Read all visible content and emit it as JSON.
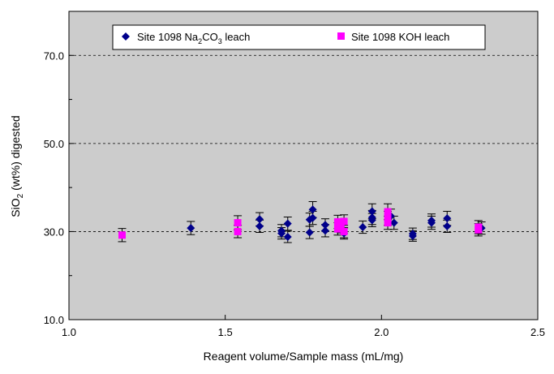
{
  "chart_data": {
    "type": "scatter",
    "xlabel": "Reagent volume/Sample mass (mL/mg)",
    "ylabel_parts": [
      "SiO",
      "2",
      " (wt%) digested"
    ],
    "xlim": [
      1.0,
      2.5
    ],
    "ylim": [
      10.0,
      80.0
    ],
    "x_ticks": [
      1.0,
      1.5,
      2.0,
      2.5
    ],
    "x_tick_labels": [
      "1.0",
      "1.5",
      "2.0",
      "2.5"
    ],
    "y_ticks": [
      10.0,
      30.0,
      50.0,
      70.0
    ],
    "y_tick_labels": [
      "10.0",
      "30.0",
      "50.0",
      "70.0"
    ],
    "grid": "dashed horizontal at y ticks",
    "plot_background": "#cccccc",
    "legend_position": "top",
    "series": [
      {
        "name_parts": [
          "Site 1098 Na",
          "2",
          "CO",
          "3",
          " leach"
        ],
        "marker": "diamond",
        "color": "#00008b",
        "points": [
          {
            "x": 1.39,
            "y": 30.8,
            "err": 1.5
          },
          {
            "x": 1.61,
            "y": 32.8,
            "err": 1.5
          },
          {
            "x": 1.61,
            "y": 31.2,
            "err": 1.4
          },
          {
            "x": 1.68,
            "y": 29.6,
            "err": 1.3
          },
          {
            "x": 1.68,
            "y": 30.2,
            "err": 1.4
          },
          {
            "x": 1.7,
            "y": 31.8,
            "err": 1.5
          },
          {
            "x": 1.7,
            "y": 28.8,
            "err": 1.3
          },
          {
            "x": 1.77,
            "y": 32.7,
            "err": 1.5
          },
          {
            "x": 1.77,
            "y": 29.8,
            "err": 1.4
          },
          {
            "x": 1.78,
            "y": 35.0,
            "err": 1.8
          },
          {
            "x": 1.78,
            "y": 33.1,
            "err": 1.5
          },
          {
            "x": 1.82,
            "y": 31.5,
            "err": 1.4
          },
          {
            "x": 1.82,
            "y": 30.2,
            "err": 1.4
          },
          {
            "x": 1.87,
            "y": 31.4,
            "err": 1.5
          },
          {
            "x": 1.88,
            "y": 29.6,
            "err": 1.3
          },
          {
            "x": 1.94,
            "y": 31.0,
            "err": 1.4
          },
          {
            "x": 1.97,
            "y": 34.6,
            "err": 1.7
          },
          {
            "x": 1.97,
            "y": 33.2,
            "err": 1.6
          },
          {
            "x": 1.97,
            "y": 32.6,
            "err": 1.5
          },
          {
            "x": 2.03,
            "y": 33.5,
            "err": 1.6
          },
          {
            "x": 2.04,
            "y": 32.0,
            "err": 1.5
          },
          {
            "x": 2.1,
            "y": 29.5,
            "err": 1.3
          },
          {
            "x": 2.1,
            "y": 29.0,
            "err": 1.2
          },
          {
            "x": 2.16,
            "y": 32.5,
            "err": 1.5
          },
          {
            "x": 2.16,
            "y": 32.0,
            "err": 1.5
          },
          {
            "x": 2.21,
            "y": 33.0,
            "err": 1.6
          },
          {
            "x": 2.21,
            "y": 31.2,
            "err": 1.4
          },
          {
            "x": 2.32,
            "y": 30.8,
            "err": 1.4
          }
        ]
      },
      {
        "name": "Site 1098 KOH leach",
        "marker": "square",
        "color": "#ff00ff",
        "points": [
          {
            "x": 1.17,
            "y": 29.2,
            "err": 1.5
          },
          {
            "x": 1.54,
            "y": 32.0,
            "err": 1.6
          },
          {
            "x": 1.54,
            "y": 30.0,
            "err": 1.4
          },
          {
            "x": 1.86,
            "y": 32.2,
            "err": 1.5
          },
          {
            "x": 1.86,
            "y": 30.6,
            "err": 1.4
          },
          {
            "x": 1.87,
            "y": 31.2,
            "err": 1.5
          },
          {
            "x": 1.88,
            "y": 30.0,
            "err": 1.4
          },
          {
            "x": 1.88,
            "y": 32.3,
            "err": 1.5
          },
          {
            "x": 2.02,
            "y": 34.5,
            "err": 1.8
          },
          {
            "x": 2.02,
            "y": 33.0,
            "err": 1.6
          },
          {
            "x": 2.02,
            "y": 32.0,
            "err": 1.5
          },
          {
            "x": 2.31,
            "y": 30.4,
            "err": 1.4
          },
          {
            "x": 2.31,
            "y": 31.0,
            "err": 1.5
          }
        ]
      }
    ]
  }
}
